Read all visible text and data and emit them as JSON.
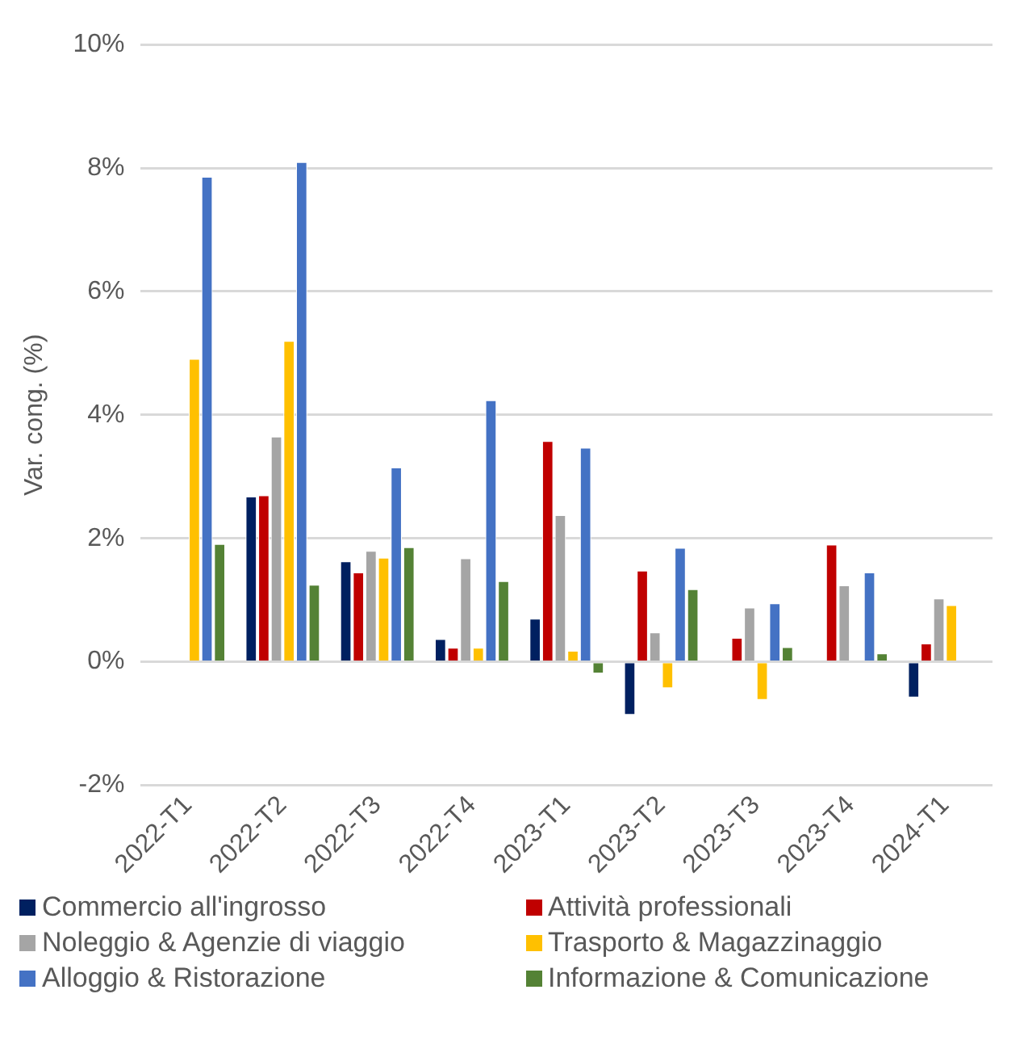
{
  "chart_data": {
    "type": "bar",
    "ylabel": "Var. cong. (%)",
    "categories": [
      "2022-T1",
      "2022-T2",
      "2022-T3",
      "2022-T4",
      "2023-T1",
      "2023-T2",
      "2023-T3",
      "2023-T4",
      "2024-T1"
    ],
    "series": [
      {
        "name": "Commercio all'ingrosso",
        "color": "#002060",
        "values": [
          null,
          2.68,
          1.63,
          0.37,
          0.7,
          -0.86,
          null,
          null,
          -0.58
        ]
      },
      {
        "name": "Attività professionali",
        "color": "#c00000",
        "values": [
          null,
          2.7,
          1.45,
          0.23,
          3.58,
          1.48,
          0.39,
          1.9,
          0.3
        ]
      },
      {
        "name": "Noleggio & Agenzie di viaggio",
        "color": "#a5a5a5",
        "values": [
          null,
          3.65,
          1.8,
          1.68,
          2.38,
          0.48,
          0.88,
          1.24,
          1.03
        ]
      },
      {
        "name": "Trasporto & Magazzinaggio",
        "color": "#ffc000",
        "values": [
          4.91,
          5.2,
          1.69,
          0.23,
          0.18,
          -0.43,
          -0.62,
          null,
          0.92
        ]
      },
      {
        "name": "Alloggio & Ristorazione",
        "color": "#4472c4",
        "values": [
          7.86,
          8.1,
          3.15,
          4.24,
          3.47,
          1.85,
          0.95,
          1.45,
          null
        ]
      },
      {
        "name": "Informazione & Comunicazione",
        "color": "#548235",
        "values": [
          1.91,
          1.25,
          1.86,
          1.31,
          -0.19,
          1.18,
          0.24,
          0.14,
          null
        ]
      }
    ],
    "ylim": [
      -2,
      10
    ],
    "yticks": [
      {
        "value": -2,
        "label": "-2%"
      },
      {
        "value": 0,
        "label": "0%"
      },
      {
        "value": 2,
        "label": "2%"
      },
      {
        "value": 4,
        "label": "4%"
      },
      {
        "value": 6,
        "label": "6%"
      },
      {
        "value": 8,
        "label": "8%"
      },
      {
        "value": 10,
        "label": "10%"
      }
    ],
    "grid": "y",
    "legend": "bottom"
  }
}
